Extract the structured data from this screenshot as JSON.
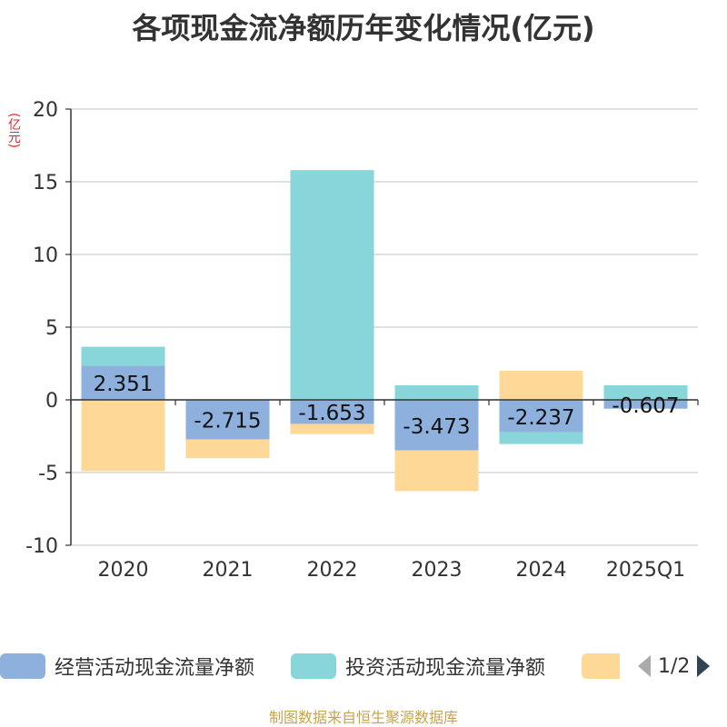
{
  "title": "各项现金流净额历年变化情况(亿元)",
  "unit_label": "(亿元)",
  "source": "制图数据来自恒生聚源数据库",
  "legend": {
    "items": [
      {
        "label": "经营活动现金流量净额",
        "color": "#8eb0dc"
      },
      {
        "label": "投资活动现金流量净额",
        "color": "#88d6d9"
      },
      {
        "label": "",
        "color": "#fed897"
      }
    ],
    "page_text": "1/2"
  },
  "chart_data": {
    "type": "bar",
    "stacked": true,
    "categories": [
      "2020",
      "2021",
      "2022",
      "2023",
      "2024",
      "2025Q1"
    ],
    "ylim": [
      -10,
      20
    ],
    "yticks": [
      20,
      15,
      10,
      5,
      0,
      -5,
      -10
    ],
    "grid": true,
    "series": [
      {
        "name": "经营活动现金流量净额",
        "color": "#8eb0dc",
        "values": [
          2.351,
          -2.715,
          -1.653,
          -3.473,
          -2.237,
          -0.607
        ],
        "labels": [
          "2.351",
          "-2.715",
          "-1.653",
          "-3.473",
          "-2.237",
          "-0.607"
        ]
      },
      {
        "name": "投资活动现金流量净额",
        "color": "#88d6d9",
        "values": [
          1.3,
          0.0,
          15.8,
          1.0,
          -0.8,
          1.0
        ]
      },
      {
        "name": "",
        "color": "#fed897",
        "values": [
          -4.9,
          -1.3,
          -0.7,
          -2.8,
          2.0,
          0.0
        ]
      }
    ]
  }
}
